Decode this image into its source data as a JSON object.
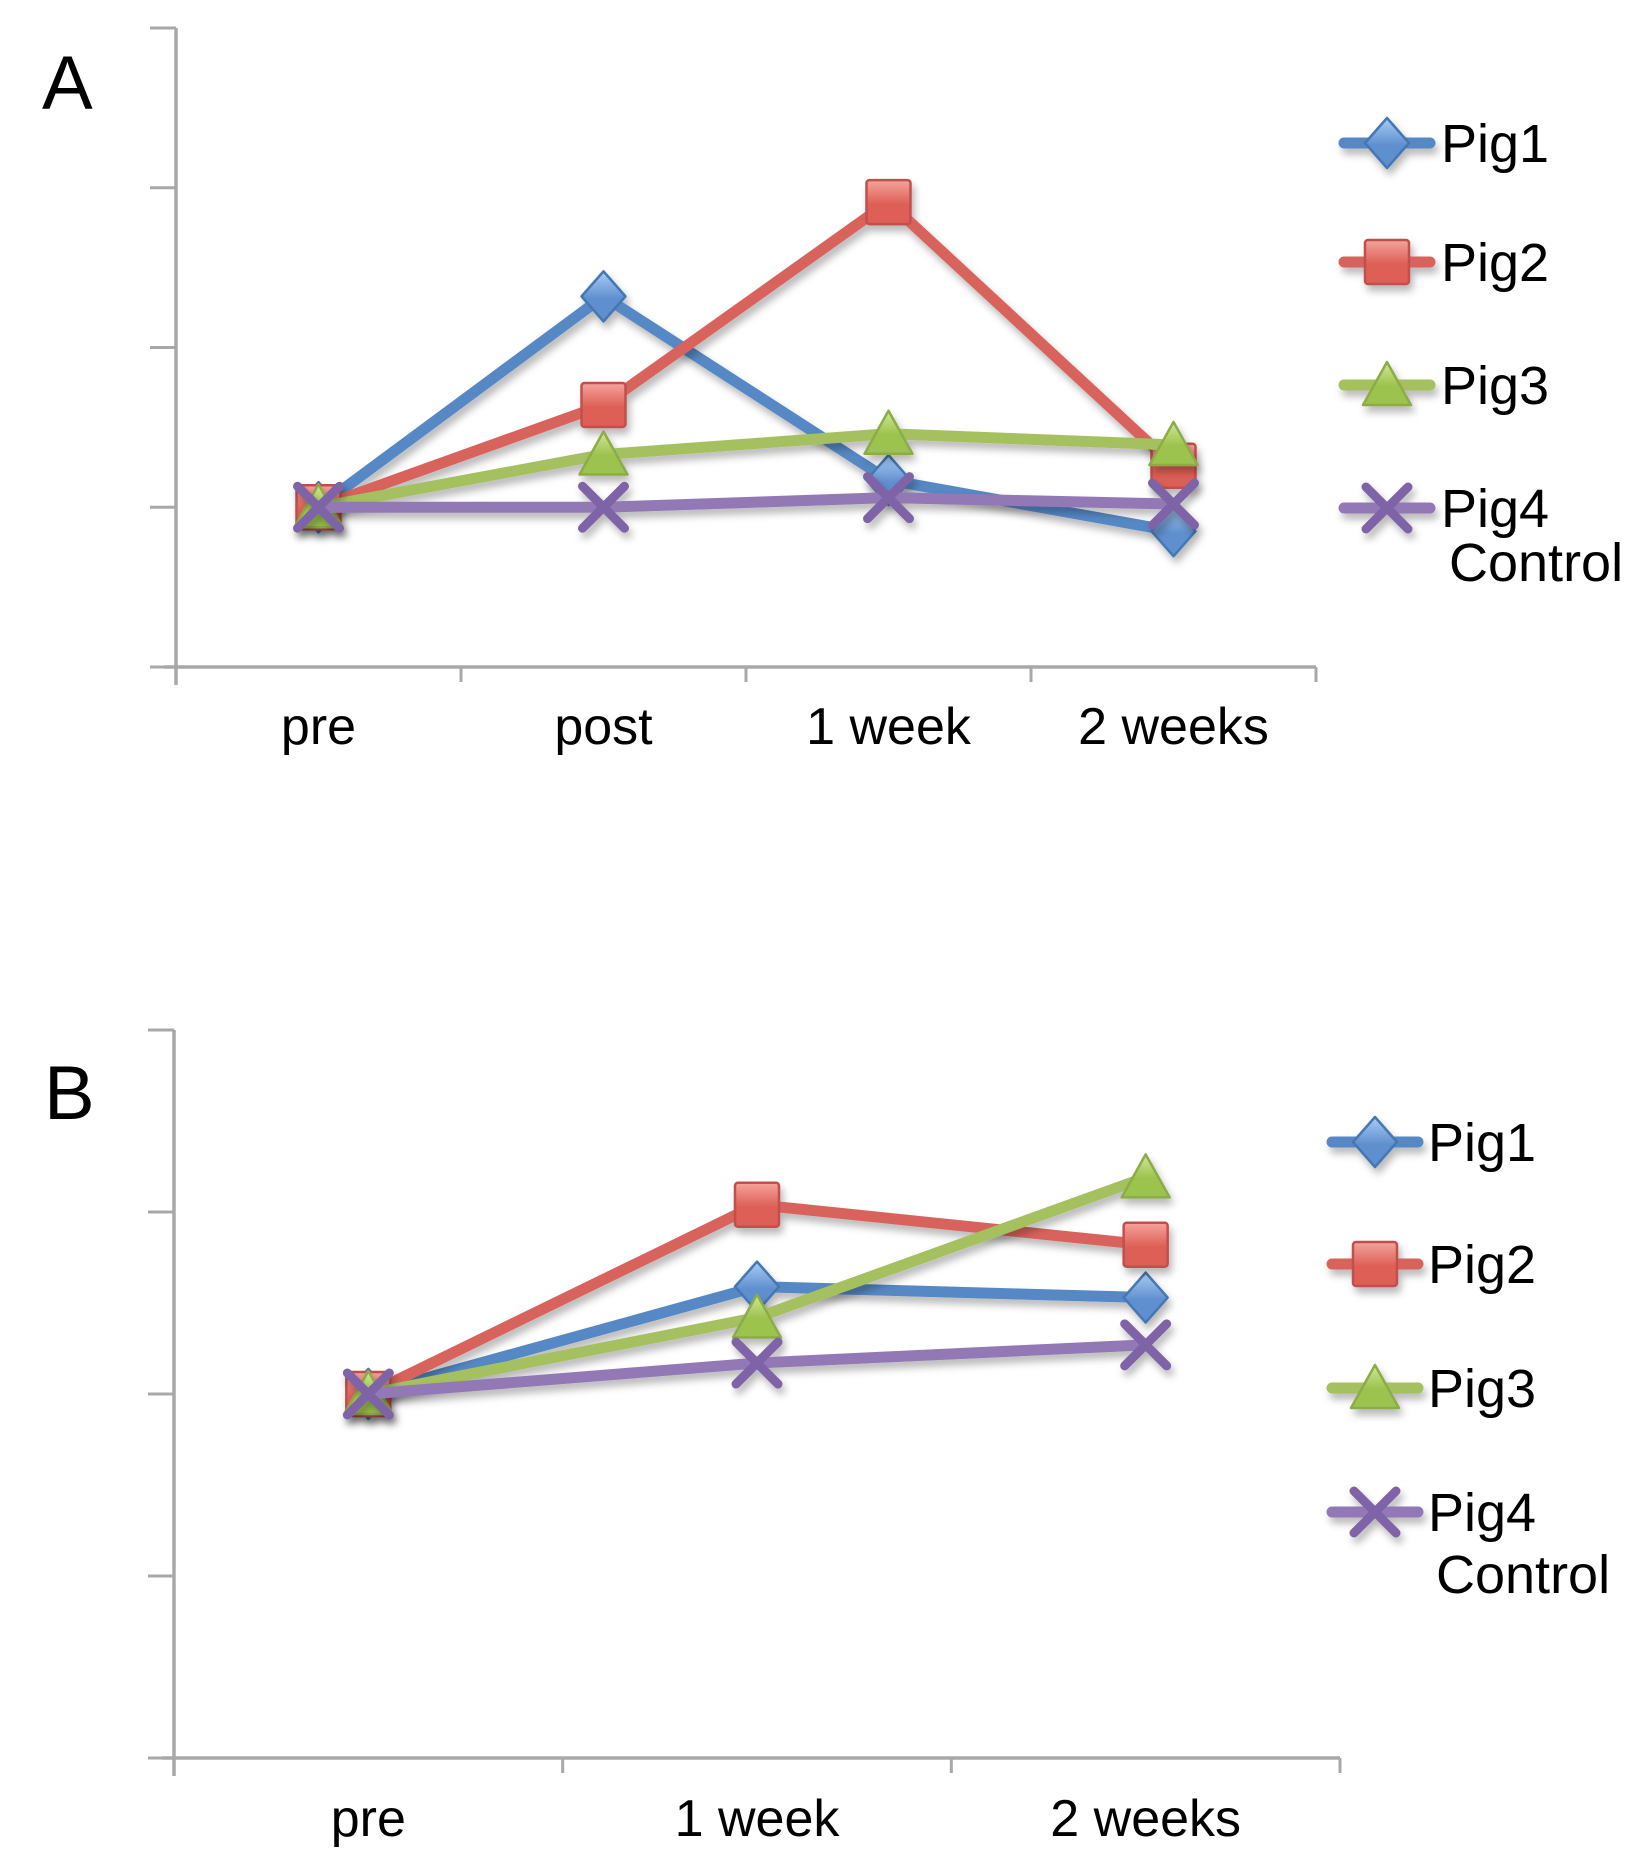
{
  "figure": {
    "background": "#ffffff",
    "axis_color": "#a8a8a8",
    "text_color": "#000000"
  },
  "chart_data": [
    {
      "type": "line",
      "panel_label": "A",
      "title": "",
      "xlabel": "",
      "ylabel": "",
      "categories": [
        "pre",
        "post",
        "1 week",
        "2 weeks"
      ],
      "series": [
        {
          "name": "Pig1",
          "marker": "diamond",
          "color": "#5588c4",
          "marker_fill_light": "#a9cdf5",
          "marker_fill_dark": "#5e8fce",
          "marker_stroke": "#4577b2",
          "values": [
            1.0,
            2.32,
            1.17,
            0.85
          ]
        },
        {
          "name": "Pig2",
          "marker": "square",
          "color": "#d8645c",
          "marker_fill_light": "#f4a49c",
          "marker_fill_dark": "#dd5f55",
          "marker_stroke": "#c0504d",
          "values": [
            1.0,
            1.64,
            2.91,
            1.26
          ]
        },
        {
          "name": "Pig3",
          "marker": "triangle",
          "color": "#a4c05e",
          "marker_fill_light": "#d3e795",
          "marker_fill_dark": "#9cc34e",
          "marker_stroke": "#8cab49",
          "values": [
            1.0,
            1.33,
            1.46,
            1.39
          ]
        },
        {
          "name": "Pig4",
          "marker": "x",
          "color": "#9278b5",
          "marker_stroke": "#7e64a6",
          "legend_sublabel": "Control",
          "values": [
            1.0,
            1.0,
            1.06,
            1.02
          ]
        }
      ],
      "ylim": [
        0,
        4
      ],
      "ytick_count": 5,
      "ytick_labels_visible": false,
      "grid": false,
      "legend_position": "right"
    },
    {
      "type": "line",
      "panel_label": "B",
      "title": "",
      "xlabel": "",
      "ylabel": "",
      "categories": [
        "pre",
        "1 week",
        "2 weeks"
      ],
      "series": [
        {
          "name": "Pig1",
          "marker": "diamond",
          "color": "#5588c4",
          "marker_fill_light": "#a9cdf5",
          "marker_fill_dark": "#5e8fce",
          "marker_stroke": "#4577b2",
          "values": [
            2.0,
            2.59,
            2.53
          ]
        },
        {
          "name": "Pig2",
          "marker": "square",
          "color": "#d8645c",
          "marker_fill_light": "#f4a49c",
          "marker_fill_dark": "#dd5f55",
          "marker_stroke": "#c0504d",
          "values": [
            2.0,
            3.04,
            2.82
          ]
        },
        {
          "name": "Pig3",
          "marker": "triangle",
          "color": "#a4c05e",
          "marker_fill_light": "#d3e795",
          "marker_fill_dark": "#9cc34e",
          "marker_stroke": "#8cab49",
          "values": [
            2.0,
            2.42,
            3.19
          ]
        },
        {
          "name": "Pig4",
          "marker": "x",
          "color": "#9278b5",
          "marker_stroke": "#7e64a6",
          "legend_sublabel": "Control",
          "values": [
            2.0,
            2.17,
            2.27
          ]
        }
      ],
      "ylim": [
        0,
        4
      ],
      "ytick_count": 5,
      "ytick_labels_visible": false,
      "grid": false,
      "legend_position": "right"
    }
  ]
}
